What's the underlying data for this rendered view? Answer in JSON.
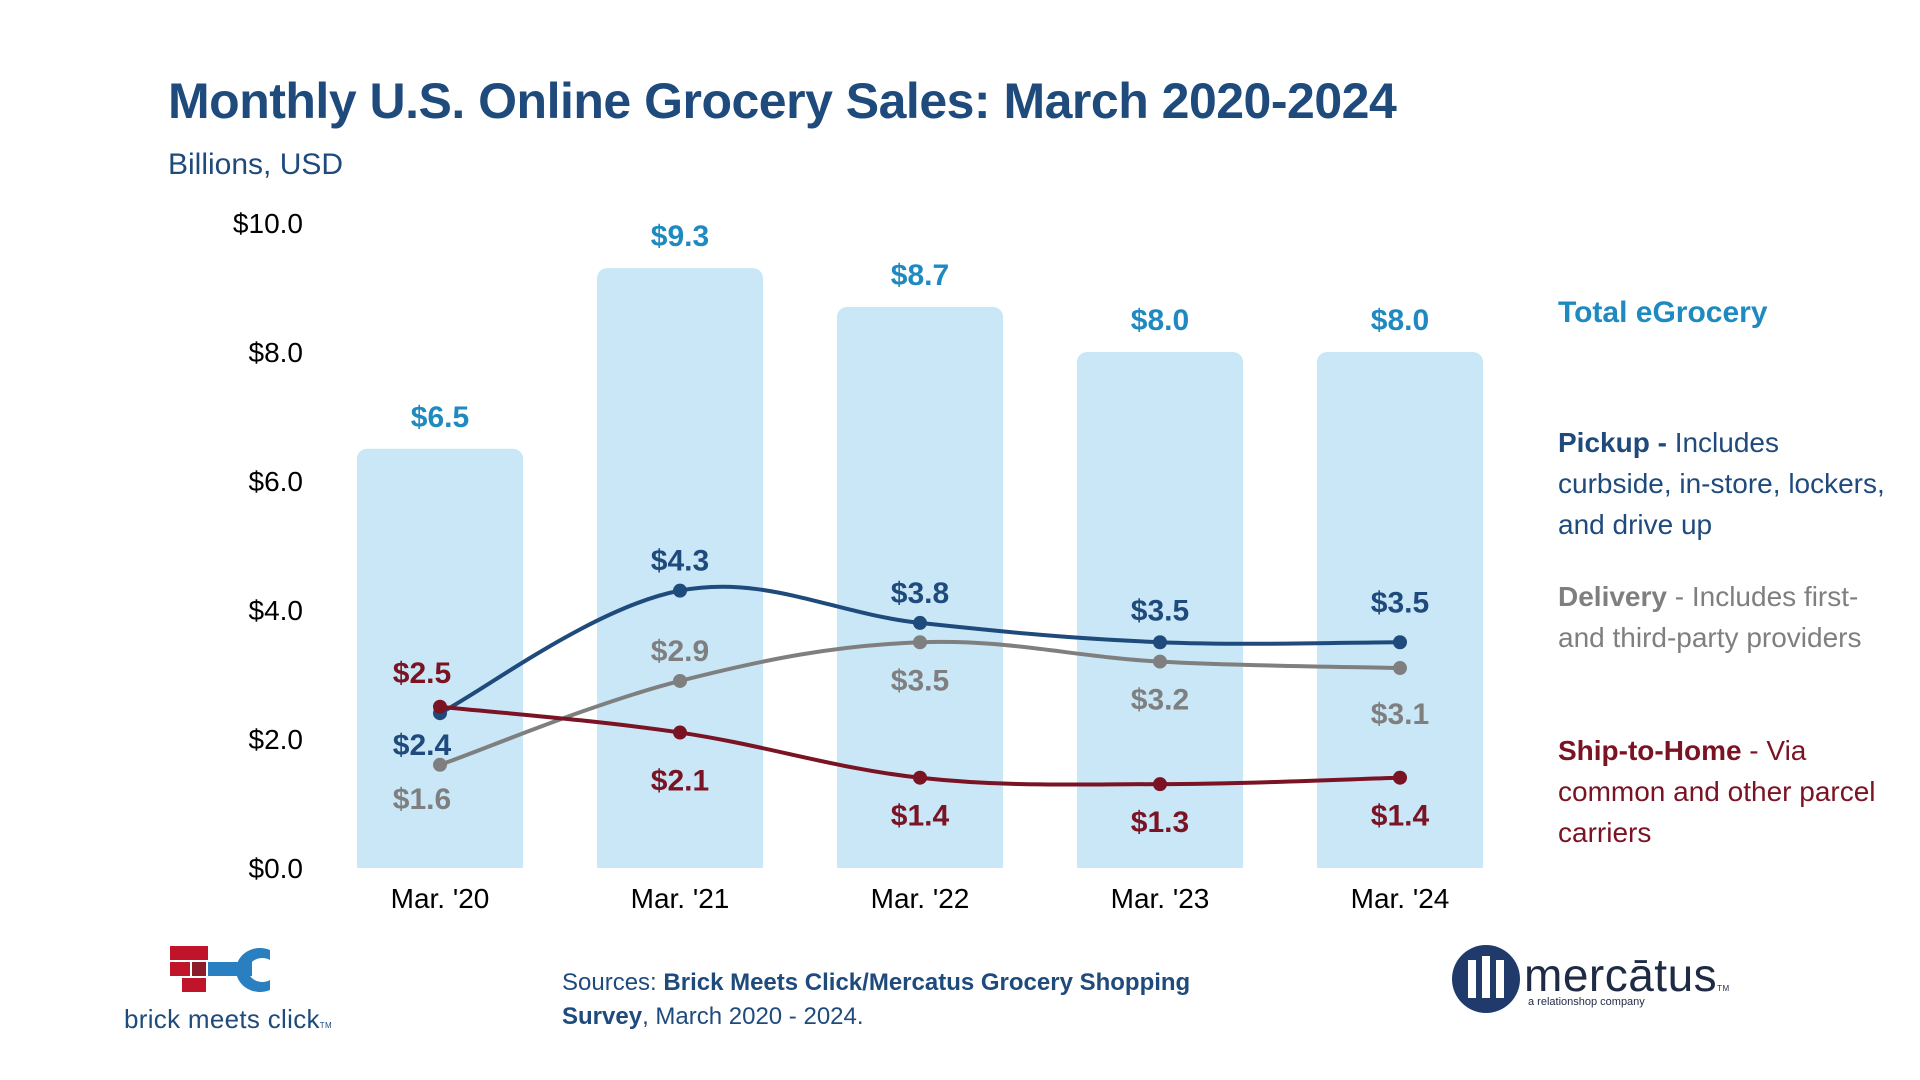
{
  "header": {
    "title": "Monthly U.S. Online Grocery Sales: March 2020-2024",
    "subtitle": "Billions, USD"
  },
  "legend": {
    "total": "Total eGrocery",
    "pickup_name": "Pickup -",
    "pickup_desc": " Includes curbside, in-store, lockers, and drive up",
    "delivery_name": "Delivery",
    "delivery_desc": " - Includes first- and third-party providers",
    "ship_name": "Ship-to-Home",
    "ship_desc": " - Via common and other parcel carriers"
  },
  "footer": {
    "sources_prefix": "Sources: ",
    "sources_name": "Brick Meets Click/Mercatus Grocery Shopping Survey",
    "sources_suffix": ", March 2020 - 2024.",
    "bmc_logo_text": "brick meets click",
    "bmc_tm": "TM",
    "mercatus_logo_text": "mercātus",
    "mercatus_tm": "TM",
    "mercatus_tagline": "a relationshop company"
  },
  "colors": {
    "total": "#1f8ac0",
    "bar": "#c9e7f7",
    "pickup": "#1f4a7c",
    "delivery": "#7f7f7f",
    "ship": "#7a1323"
  },
  "chart_data": {
    "type": "bar",
    "categories": [
      "Mar. '20",
      "Mar. '21",
      "Mar. '22",
      "Mar. '23",
      "Mar. '24"
    ],
    "ylim": [
      0,
      10
    ],
    "yticks": [
      "$0.0",
      "$2.0",
      "$4.0",
      "$6.0",
      "$8.0",
      "$10.0"
    ],
    "ytick_values": [
      0,
      2,
      4,
      6,
      8,
      10
    ],
    "grid": false,
    "legend_position": "right",
    "bar_series": {
      "name": "Total eGrocery",
      "values": [
        6.5,
        9.3,
        8.7,
        8.0,
        8.0
      ],
      "labels": [
        "$6.5",
        "$9.3",
        "$8.7",
        "$8.0",
        "$8.0"
      ]
    },
    "line_series": [
      {
        "name": "Pickup",
        "values": [
          2.4,
          4.3,
          3.8,
          3.5,
          3.5
        ],
        "labels": [
          "$2.4",
          "$4.3",
          "$3.8",
          "$3.5",
          "$3.5"
        ]
      },
      {
        "name": "Delivery",
        "values": [
          1.6,
          2.9,
          3.5,
          3.2,
          3.1
        ],
        "labels": [
          "$1.6",
          "$2.9",
          "$3.5",
          "$3.2",
          "$3.1"
        ]
      },
      {
        "name": "Ship-to-Home",
        "values": [
          2.5,
          2.1,
          1.4,
          1.3,
          1.4
        ],
        "labels": [
          "$2.5",
          "$2.1",
          "$1.4",
          "$1.3",
          "$1.4"
        ]
      }
    ]
  }
}
